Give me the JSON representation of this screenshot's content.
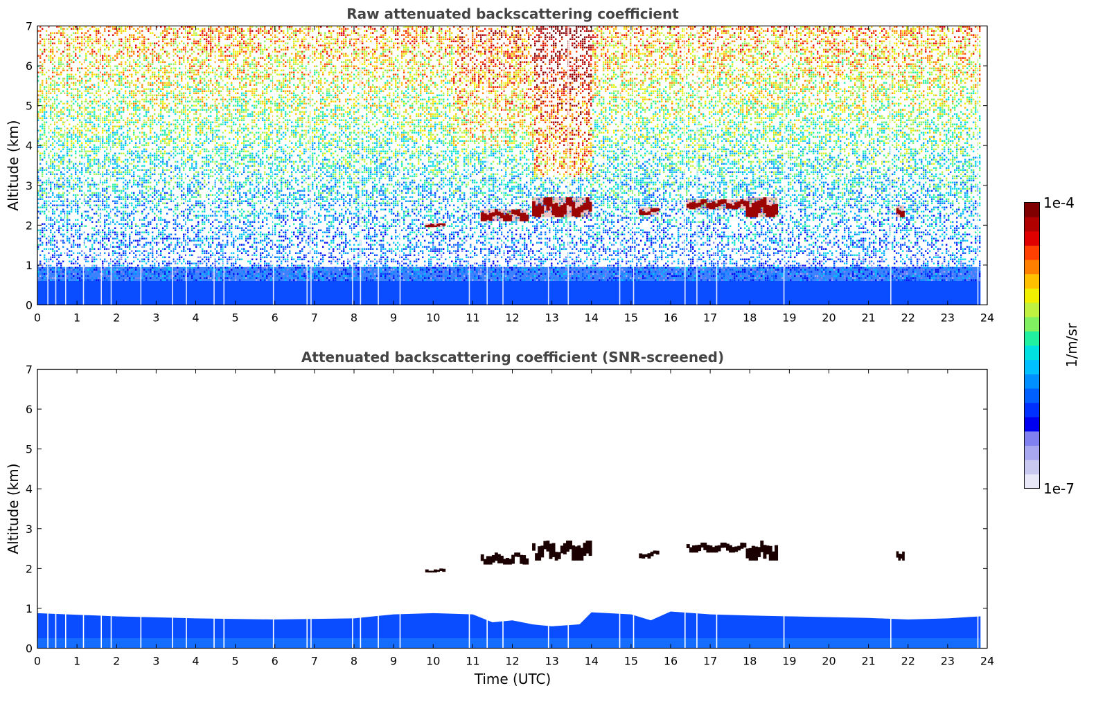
{
  "chart_data": [
    {
      "type": "heatmap",
      "title": "Raw attenuated backscattering coefficient",
      "xlabel": "",
      "ylabel": "Altitude (km)",
      "xlim": [
        0,
        24
      ],
      "ylim": [
        0,
        7
      ],
      "xticks": [
        "0",
        "1",
        "2",
        "3",
        "4",
        "5",
        "6",
        "7",
        "8",
        "9",
        "10",
        "11",
        "12",
        "13",
        "14",
        "15",
        "16",
        "17",
        "18",
        "19",
        "20",
        "21",
        "22",
        "23",
        "24"
      ],
      "yticks": [
        "0",
        "1",
        "2",
        "3",
        "4",
        "5",
        "6",
        "7"
      ],
      "data_end_hour": 23.83,
      "screened": false,
      "features": [
        {
          "feature": "boundary-layer",
          "altitude_km": [
            0,
            0.9
          ],
          "level": "1e-6"
        },
        {
          "feature": "noise",
          "altitude_km": [
            0.9,
            7
          ],
          "level_increasing_with_altitude": true
        },
        {
          "feature": "cloud",
          "hours": [
            9.8,
            10.3
          ],
          "altitude_km": [
            1.95,
            2.05
          ],
          "level": "1e-4"
        },
        {
          "feature": "cloud",
          "hours": [
            11.2,
            12.4
          ],
          "altitude_km": [
            2.1,
            2.4
          ],
          "level": "1e-4"
        },
        {
          "feature": "cloud",
          "hours": [
            12.5,
            14.0
          ],
          "altitude_km": [
            2.2,
            2.7
          ],
          "level": "1e-4"
        },
        {
          "feature": "cloud",
          "hours": [
            15.2,
            15.7
          ],
          "altitude_km": [
            2.25,
            2.45
          ],
          "level": "1e-4"
        },
        {
          "feature": "cloud",
          "hours": [
            16.4,
            17.9
          ],
          "altitude_km": [
            2.4,
            2.65
          ],
          "level": "1e-4"
        },
        {
          "feature": "cloud",
          "hours": [
            17.9,
            18.7
          ],
          "altitude_km": [
            2.2,
            2.7
          ],
          "level": "1e-4"
        },
        {
          "feature": "cloud",
          "hours": [
            21.7,
            21.9
          ],
          "altitude_km": [
            2.2,
            2.5
          ],
          "level": "1e-4"
        }
      ]
    },
    {
      "type": "heatmap",
      "title": "Attenuated backscattering coefficient (SNR-screened)",
      "xlabel": "Time (UTC)",
      "ylabel": "Altitude (km)",
      "xlim": [
        0,
        24
      ],
      "ylim": [
        0,
        7
      ],
      "xticks": [
        "0",
        "1",
        "2",
        "3",
        "4",
        "5",
        "6",
        "7",
        "8",
        "9",
        "10",
        "11",
        "12",
        "13",
        "14",
        "15",
        "16",
        "17",
        "18",
        "19",
        "20",
        "21",
        "22",
        "23",
        "24"
      ],
      "yticks": [
        "0",
        "1",
        "2",
        "3",
        "4",
        "5",
        "6",
        "7"
      ],
      "data_end_hour": 23.83,
      "screened": true,
      "boundary_layer_top_km": [
        [
          0,
          0.88
        ],
        [
          2,
          0.8
        ],
        [
          4,
          0.75
        ],
        [
          6,
          0.72
        ],
        [
          8,
          0.75
        ],
        [
          9,
          0.85
        ],
        [
          10,
          0.88
        ],
        [
          11,
          0.85
        ],
        [
          11.5,
          0.65
        ],
        [
          12,
          0.7
        ],
        [
          12.5,
          0.6
        ],
        [
          13,
          0.55
        ],
        [
          13.7,
          0.6
        ],
        [
          14,
          0.9
        ],
        [
          15,
          0.85
        ],
        [
          15.5,
          0.7
        ],
        [
          16,
          0.92
        ],
        [
          17,
          0.85
        ],
        [
          18,
          0.82
        ],
        [
          19,
          0.8
        ],
        [
          20,
          0.78
        ],
        [
          21,
          0.76
        ],
        [
          22,
          0.72
        ],
        [
          23,
          0.75
        ],
        [
          23.83,
          0.8
        ]
      ],
      "features": [
        {
          "feature": "cloud",
          "hours": [
            11.2,
            12.4
          ],
          "altitude_km": [
            2.1,
            2.4
          ]
        },
        {
          "feature": "cloud",
          "hours": [
            12.5,
            14.0
          ],
          "altitude_km": [
            2.2,
            2.7
          ]
        },
        {
          "feature": "cloud",
          "hours": [
            15.2,
            15.7
          ],
          "altitude_km": [
            2.25,
            2.45
          ]
        },
        {
          "feature": "cloud",
          "hours": [
            16.4,
            17.9
          ],
          "altitude_km": [
            2.4,
            2.65
          ]
        },
        {
          "feature": "cloud",
          "hours": [
            17.9,
            18.7
          ],
          "altitude_km": [
            2.2,
            2.7
          ]
        },
        {
          "feature": "cloud",
          "hours": [
            21.7,
            21.9
          ],
          "altitude_km": [
            2.2,
            2.5
          ]
        },
        {
          "feature": "cloud",
          "hours": [
            9.8,
            10.3
          ],
          "altitude_km": [
            1.9,
            2.0
          ]
        }
      ]
    }
  ],
  "colorbar": {
    "label": "1/m/sr",
    "max_label": "1e-4",
    "min_label": "1e-7",
    "colors": [
      "#e8e8f8",
      "#c8c8f0",
      "#a8a8f0",
      "#8080f0",
      "#0000f0",
      "#0030ff",
      "#0060ff",
      "#0090ff",
      "#00c0ff",
      "#00e0e0",
      "#20f0a0",
      "#80f060",
      "#c0f040",
      "#f0f000",
      "#ffc000",
      "#ff8000",
      "#ff4000",
      "#e00000",
      "#b00000",
      "#800000"
    ]
  }
}
